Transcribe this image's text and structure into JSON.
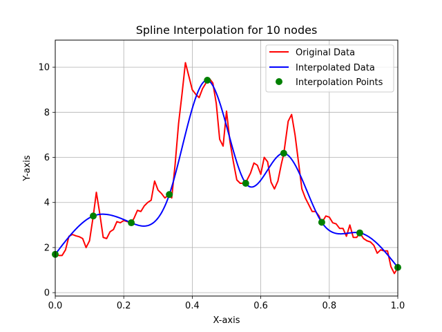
{
  "chart_data": {
    "type": "line",
    "title": "Spline Interpolation for 10 nodes",
    "xlabel": "X-axis",
    "ylabel": "Y-axis",
    "xlim": [
      0.0,
      1.0
    ],
    "ylim": [
      -0.15,
      11.2
    ],
    "x_ticks": [
      0.0,
      0.2,
      0.4,
      0.6,
      0.8,
      1.0
    ],
    "x_tick_labels": [
      "0.0",
      "0.2",
      "0.4",
      "0.6",
      "0.8",
      "1.0"
    ],
    "y_ticks": [
      0,
      2,
      4,
      6,
      8,
      10
    ],
    "y_tick_labels": [
      "0",
      "2",
      "4",
      "6",
      "8",
      "10"
    ],
    "grid": true,
    "legend_position": "top-right",
    "series": [
      {
        "name": "Original Data",
        "kind": "line",
        "color": "#ff0000",
        "x": [
          0.0,
          0.01,
          0.02,
          0.03,
          0.04,
          0.05,
          0.06,
          0.07,
          0.08,
          0.09,
          0.1,
          0.111,
          0.12,
          0.13,
          0.14,
          0.15,
          0.16,
          0.17,
          0.18,
          0.19,
          0.2,
          0.21,
          0.222,
          0.23,
          0.24,
          0.25,
          0.26,
          0.27,
          0.28,
          0.29,
          0.3,
          0.31,
          0.32,
          0.333,
          0.34,
          0.35,
          0.36,
          0.37,
          0.38,
          0.39,
          0.4,
          0.41,
          0.42,
          0.43,
          0.444,
          0.45,
          0.46,
          0.47,
          0.48,
          0.49,
          0.5,
          0.51,
          0.52,
          0.53,
          0.54,
          0.556,
          0.56,
          0.57,
          0.58,
          0.59,
          0.6,
          0.61,
          0.62,
          0.63,
          0.64,
          0.65,
          0.66,
          0.667,
          0.68,
          0.69,
          0.7,
          0.71,
          0.72,
          0.73,
          0.74,
          0.75,
          0.76,
          0.77,
          0.778,
          0.79,
          0.8,
          0.81,
          0.82,
          0.83,
          0.84,
          0.85,
          0.86,
          0.87,
          0.88,
          0.889,
          0.9,
          0.91,
          0.92,
          0.93,
          0.94,
          0.95,
          0.96,
          0.97,
          0.98,
          0.99,
          1.0
        ],
        "y": [
          1.75,
          1.65,
          1.65,
          1.9,
          2.5,
          2.58,
          2.52,
          2.48,
          2.4,
          2.0,
          2.3,
          3.4,
          4.45,
          3.5,
          2.45,
          2.4,
          2.7,
          2.8,
          3.15,
          3.1,
          3.2,
          3.15,
          3.1,
          3.3,
          3.65,
          3.6,
          3.85,
          4.0,
          4.1,
          4.95,
          4.55,
          4.4,
          4.2,
          4.35,
          4.2,
          5.7,
          7.5,
          8.8,
          10.2,
          9.6,
          9.0,
          8.8,
          8.65,
          9.05,
          9.4,
          9.5,
          9.3,
          8.4,
          6.8,
          6.5,
          8.05,
          6.7,
          5.8,
          5.0,
          4.85,
          4.85,
          5.0,
          5.3,
          5.75,
          5.65,
          5.25,
          6.0,
          5.8,
          4.9,
          4.6,
          4.95,
          5.7,
          6.15,
          7.6,
          7.9,
          7.0,
          5.8,
          4.6,
          4.2,
          3.9,
          3.6,
          3.6,
          3.4,
          3.1,
          3.4,
          3.35,
          3.1,
          3.05,
          2.85,
          2.85,
          2.5,
          3.0,
          2.45,
          2.45,
          2.65,
          2.4,
          2.3,
          2.25,
          2.1,
          1.75,
          1.9,
          1.85,
          1.85,
          1.15,
          0.85,
          1.1
        ]
      },
      {
        "name": "Interpolated Data",
        "kind": "spline",
        "color": "#0000ff",
        "x": [
          0.0,
          0.111,
          0.222,
          0.333,
          0.444,
          0.556,
          0.667,
          0.778,
          0.889,
          1.0
        ]
      },
      {
        "name": "Interpolation Points",
        "kind": "scatter",
        "color": "#008000",
        "x": [
          0.0,
          0.111,
          0.222,
          0.333,
          0.444,
          0.556,
          0.667,
          0.778,
          0.889,
          1.0
        ],
        "y": [
          1.7,
          3.4,
          3.1,
          4.35,
          9.42,
          4.85,
          6.18,
          3.12,
          2.65,
          1.12
        ]
      }
    ]
  }
}
